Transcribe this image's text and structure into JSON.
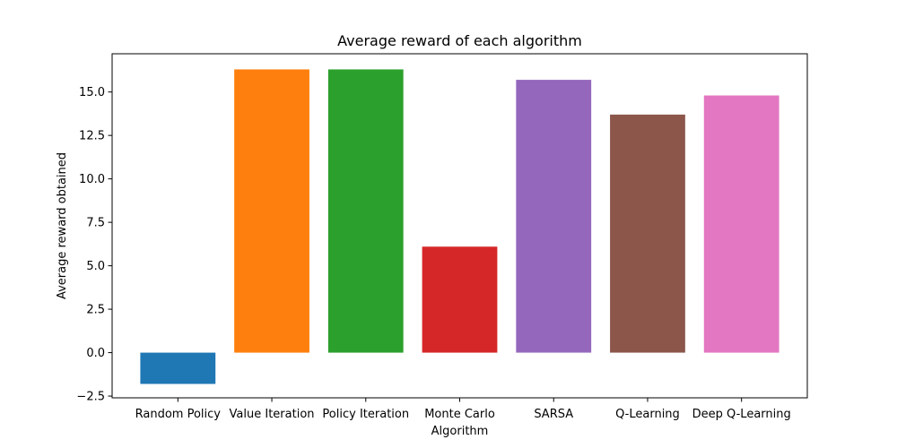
{
  "chart_data": {
    "type": "bar",
    "title": "Average reward of each algorithm",
    "xlabel": "Algorithm",
    "ylabel": "Average reward obtained",
    "categories": [
      "Random Policy",
      "Value Iteration",
      "Policy Iteration",
      "Monte Carlo",
      "SARSA",
      "Q-Learning",
      "Deep Q-Learning"
    ],
    "values": [
      -1.8,
      16.3,
      16.3,
      6.1,
      15.7,
      13.7,
      14.8
    ],
    "colors": [
      "#1f77b4",
      "#ff7f0e",
      "#2ca02c",
      "#d62728",
      "#9467bd",
      "#8c564b",
      "#e377c2"
    ],
    "ylim": [
      -2.6,
      17.2
    ],
    "yticks": [
      -2.5,
      0.0,
      2.5,
      5.0,
      7.5,
      10.0,
      12.5,
      15.0
    ],
    "ytick_labels": [
      "−2.5",
      "0.0",
      "2.5",
      "5.0",
      "7.5",
      "10.0",
      "12.5",
      "15.0"
    ],
    "grid": false,
    "legend": "none"
  }
}
